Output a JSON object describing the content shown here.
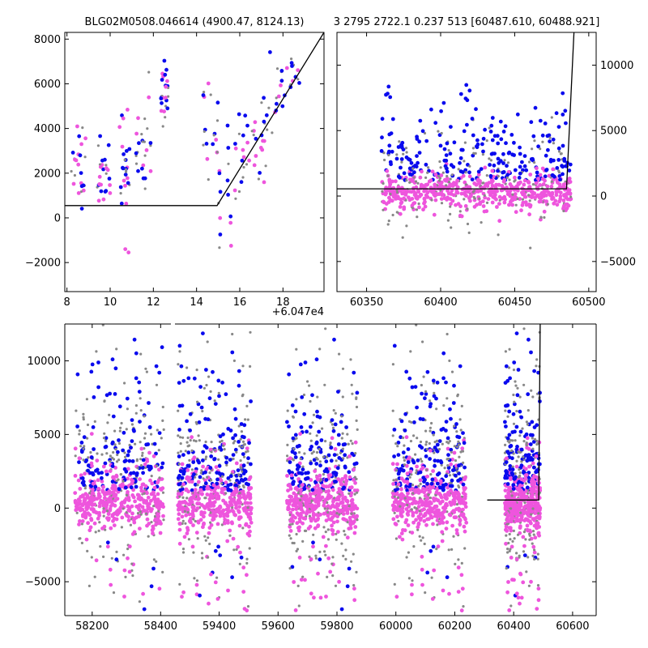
{
  "colors": {
    "gray": "#888888",
    "blue": "#0a0aee",
    "pink": "#ee55dd",
    "line": "#000000"
  },
  "chart_data": [
    {
      "type": "scatter",
      "title": "BLG02M0508.046614 (4900.47, 8124.13)",
      "xlim": [
        7.9,
        19.9
      ],
      "ylim": [
        -3300,
        8300
      ],
      "xticks": [
        8,
        10,
        12,
        14,
        16,
        18
      ],
      "yticks": [
        -2000,
        0,
        2000,
        4000,
        6000,
        8000
      ],
      "ytick_labels": [
        "−2000",
        "0",
        "2000",
        "4000",
        "6000",
        "8000"
      ],
      "x_offset_label": "+6.047e4",
      "model_line": [
        [
          7.9,
          550
        ],
        [
          14.95,
          550
        ],
        [
          19.9,
          8300
        ]
      ]
    },
    {
      "type": "scatter",
      "title": "3 2795 2722.1 0.237 513 [60487.610, 60488.921]",
      "xlim": [
        60330,
        60505
      ],
      "ylim": [
        -7300,
        12500
      ],
      "xticks": [
        60350,
        60400,
        60450,
        60500
      ],
      "yticks": [
        -5000,
        0,
        5000,
        10000
      ],
      "ytick_labels": [
        "−5000",
        "0",
        "5000",
        "10000"
      ],
      "y_axis_side": "right",
      "model_line": [
        [
          60330,
          550
        ],
        [
          60485,
          550
        ],
        [
          60490,
          12500
        ]
      ]
    },
    {
      "type": "scatter",
      "title": "",
      "segments": [
        {
          "xlim": [
            58120,
            58430
          ],
          "xticks": [
            58200,
            58400
          ]
        },
        {
          "xlim": [
            59250,
            60680
          ],
          "xticks": [
            59400,
            59600,
            59800,
            60000,
            60200,
            60400,
            60600
          ]
        }
      ],
      "ylim": [
        -7300,
        12500
      ],
      "yticks": [
        -5000,
        0,
        5000,
        10000
      ],
      "ytick_labels": [
        "−5000",
        "0",
        "5000",
        "10000"
      ],
      "seasons": [
        [
          58150,
          58410
        ],
        [
          59260,
          59510
        ],
        [
          59630,
          59870
        ],
        [
          59990,
          60240
        ],
        [
          60370,
          60490
        ]
      ],
      "model_line": [
        [
          60310,
          550
        ],
        [
          60485,
          550
        ],
        [
          60490,
          12500
        ]
      ]
    }
  ]
}
